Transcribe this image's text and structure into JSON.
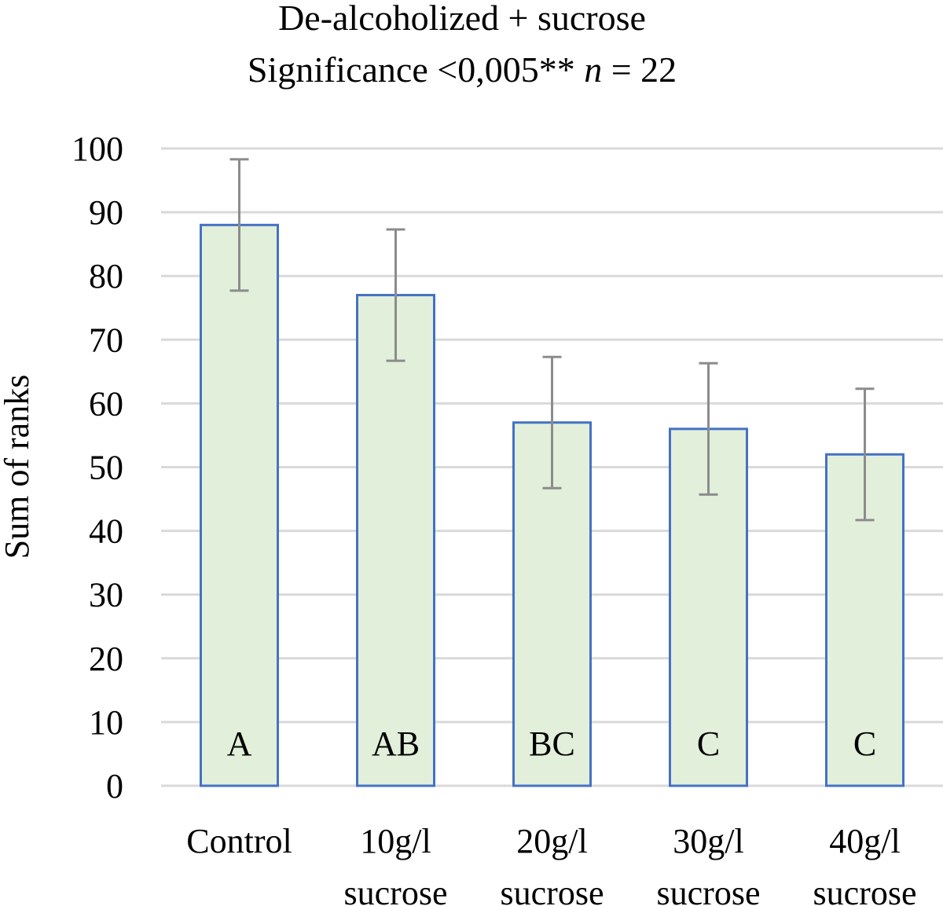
{
  "chart_data": {
    "type": "bar",
    "title_line1": "De-alcoholized + sucrose",
    "title_line2_prefix": "Significance <0,005** ",
    "title_line2_n": "n",
    "title_line2_suffix": " = 22",
    "ylabel": "Sum of ranks",
    "xlabel": "",
    "ylim": [
      0,
      100
    ],
    "yticks": [
      0,
      10,
      20,
      30,
      40,
      50,
      60,
      70,
      80,
      90,
      100
    ],
    "categories": [
      {
        "line1": "Control",
        "line2": ""
      },
      {
        "line1": "10g/l",
        "line2": "sucrose"
      },
      {
        "line1": "20g/l",
        "line2": "sucrose"
      },
      {
        "line1": "30g/l",
        "line2": "sucrose"
      },
      {
        "line1": "40g/l",
        "line2": "sucrose"
      }
    ],
    "values": [
      88,
      77,
      57,
      56,
      52
    ],
    "error": [
      10.3,
      10.3,
      10.3,
      10.3,
      10.3
    ],
    "group_letters": [
      "A",
      "AB",
      "BC",
      "C",
      "C"
    ],
    "grid": true,
    "legend": "none",
    "colors": {
      "bar_fill": "#e2efda",
      "bar_stroke": "#4472c4",
      "error_bar": "#8c8c8c",
      "grid": "#d9d9d9"
    }
  }
}
